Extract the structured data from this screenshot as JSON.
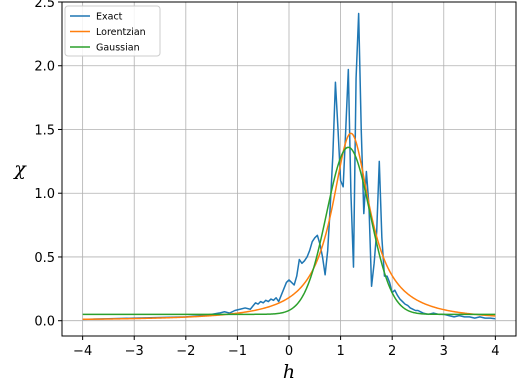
{
  "chart_data": {
    "type": "line",
    "title": "",
    "xlabel": "h",
    "ylabel": "χ",
    "xlim": [
      -4.4,
      4.4
    ],
    "ylim": [
      -0.12,
      2.5
    ],
    "xticks": [
      -4,
      -3,
      -2,
      -1,
      0,
      1,
      2,
      3,
      4
    ],
    "xtick_labels": [
      "−4",
      "−3",
      "−2",
      "−1",
      "0",
      "1",
      "2",
      "3",
      "4"
    ],
    "yticks": [
      0.0,
      0.5,
      1.0,
      1.5,
      2.0,
      2.5
    ],
    "ytick_labels": [
      "0.0",
      "0.5",
      "1.0",
      "1.5",
      "2.0",
      "2.5"
    ],
    "grid": true,
    "legend_position": "top-left",
    "series": [
      {
        "name": "Exact",
        "color": "#1f77b4",
        "x": [
          -4,
          -3.5,
          -3,
          -2.5,
          -2,
          -1.7,
          -1.5,
          -1.35,
          -1.25,
          -1.15,
          -1.05,
          -0.95,
          -0.85,
          -0.75,
          -0.65,
          -0.6,
          -0.55,
          -0.5,
          -0.45,
          -0.4,
          -0.35,
          -0.3,
          -0.25,
          -0.2,
          -0.15,
          -0.1,
          -0.05,
          0,
          0.05,
          0.1,
          0.15,
          0.2,
          0.25,
          0.3,
          0.35,
          0.4,
          0.45,
          0.5,
          0.55,
          0.6,
          0.65,
          0.7,
          0.75,
          0.8,
          0.85,
          0.9,
          0.95,
          1.0,
          1.05,
          1.1,
          1.15,
          1.2,
          1.25,
          1.3,
          1.35,
          1.4,
          1.45,
          1.5,
          1.55,
          1.6,
          1.65,
          1.7,
          1.75,
          1.8,
          1.85,
          1.9,
          1.95,
          2.0,
          2.05,
          2.1,
          2.15,
          2.2,
          2.25,
          2.3,
          2.35,
          2.4,
          2.45,
          2.5,
          2.55,
          2.6,
          2.7,
          2.8,
          2.9,
          3.0,
          3.1,
          3.2,
          3.3,
          3.4,
          3.5,
          3.6,
          3.7,
          3.8,
          3.9,
          4.0
        ],
        "y": [
          0.01,
          0.015,
          0.02,
          0.025,
          0.03,
          0.04,
          0.05,
          0.06,
          0.07,
          0.06,
          0.08,
          0.09,
          0.1,
          0.09,
          0.14,
          0.13,
          0.15,
          0.14,
          0.16,
          0.15,
          0.17,
          0.16,
          0.18,
          0.15,
          0.2,
          0.25,
          0.3,
          0.32,
          0.3,
          0.28,
          0.35,
          0.48,
          0.45,
          0.47,
          0.5,
          0.55,
          0.62,
          0.65,
          0.67,
          0.6,
          0.5,
          0.36,
          0.55,
          0.9,
          1.3,
          1.87,
          1.5,
          1.1,
          1.05,
          1.5,
          1.97,
          1.0,
          0.42,
          1.9,
          2.41,
          1.5,
          0.84,
          1.17,
          0.9,
          0.27,
          0.45,
          0.7,
          1.25,
          0.65,
          0.35,
          0.35,
          0.3,
          0.22,
          0.24,
          0.2,
          0.17,
          0.15,
          0.13,
          0.12,
          0.1,
          0.09,
          0.08,
          0.08,
          0.07,
          0.06,
          0.05,
          0.06,
          0.05,
          0.05,
          0.04,
          0.03,
          0.04,
          0.03,
          0.03,
          0.02,
          0.03,
          0.02,
          0.02,
          0.015
        ]
      },
      {
        "name": "Lorentzian",
        "color": "#ff7f0e",
        "model": "lorentzian",
        "params": {
          "amplitude": 1.47,
          "center": 1.2,
          "gamma": 0.45
        }
      },
      {
        "name": "Gaussian",
        "color": "#2ca02c",
        "model": "gaussian",
        "params": {
          "amplitude": 1.31,
          "center": 1.15,
          "sigma": 0.42,
          "offset": 0.05
        }
      }
    ]
  }
}
